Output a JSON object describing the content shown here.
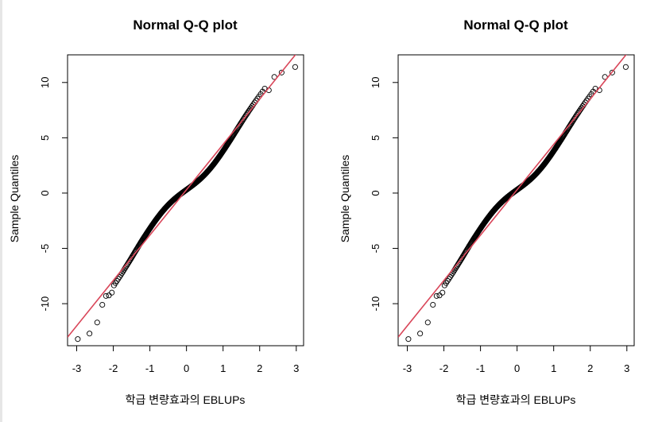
{
  "panels": [
    {
      "id": "left",
      "title": "Normal Q-Q plot",
      "xlabel": "학급 변량효과의 EBLUPs",
      "ylabel": "Sample Quantiles"
    },
    {
      "id": "right",
      "title": "Normal Q-Q plot",
      "xlabel": "학급 변량효과의 EBLUPs",
      "ylabel": "Sample Quantiles"
    }
  ],
  "chart_data": [
    {
      "type": "scatter",
      "title": "Normal Q-Q plot",
      "xlabel": "학급 변량효과의 EBLUPs",
      "ylabel": "Sample Quantiles",
      "xlim": [
        -3.25,
        3.2
      ],
      "ylim": [
        -13.8,
        12.5
      ],
      "xticks": [
        -3,
        -2,
        -1,
        0,
        1,
        2,
        3
      ],
      "yticks": [
        -10,
        -5,
        0,
        5,
        10
      ],
      "grid": false,
      "reference_line": {
        "intercept": 0.3,
        "slope": 4.1,
        "color": "#d9475a"
      },
      "n_points": 400,
      "tail_points": {
        "x": [
          -2.97,
          -2.65,
          -2.44,
          -2.3,
          -2.2,
          -2.12,
          -2.04,
          2.25,
          2.4,
          2.6,
          2.97
        ],
        "y": [
          -13.2,
          -12.7,
          -11.7,
          -10.1,
          -9.3,
          -9.25,
          -9.0,
          9.3,
          10.5,
          10.9,
          11.4
        ]
      },
      "point_color": "#000000"
    },
    {
      "type": "scatter",
      "title": "Normal Q-Q plot",
      "xlabel": "학급 변량효과의 EBLUPs",
      "ylabel": "Sample Quantiles",
      "xlim": [
        -3.25,
        3.2
      ],
      "ylim": [
        -13.8,
        12.5
      ],
      "xticks": [
        -3,
        -2,
        -1,
        0,
        1,
        2,
        3
      ],
      "yticks": [
        -10,
        -5,
        0,
        5,
        10
      ],
      "grid": false,
      "reference_line": {
        "intercept": 0.3,
        "slope": 4.1,
        "color": "#d9475a"
      },
      "n_points": 400,
      "tail_points": {
        "x": [
          -2.97,
          -2.65,
          -2.44,
          -2.3,
          -2.2,
          -2.12,
          -2.04,
          2.25,
          2.4,
          2.6,
          2.97
        ],
        "y": [
          -13.2,
          -12.7,
          -11.7,
          -10.1,
          -9.3,
          -9.25,
          -9.0,
          9.3,
          10.5,
          10.9,
          11.4
        ]
      },
      "point_color": "#000000"
    }
  ]
}
